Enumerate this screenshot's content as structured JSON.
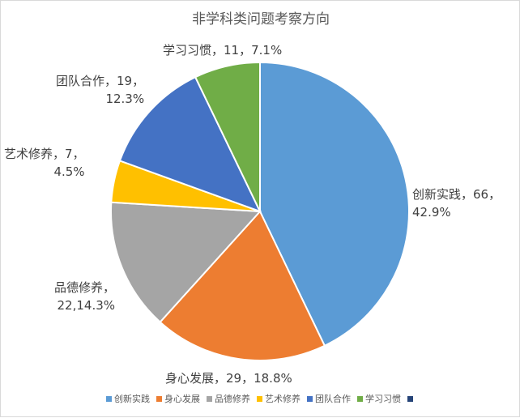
{
  "chart_data": {
    "type": "pie",
    "title": "非学科类问题考察方向",
    "categories": [
      "创新实践",
      "身心发展",
      "品德修养",
      "艺术修养",
      "团队合作",
      "学习习惯"
    ],
    "values": [
      66,
      29,
      22,
      7,
      19,
      11
    ],
    "percents": [
      "42.9%",
      "18.8%",
      "14.3%",
      "4.5%",
      "12.3%",
      "7.1%"
    ],
    "colors": [
      "#5b9bd5",
      "#ed7d31",
      "#a5a5a5",
      "#ffc000",
      "#4472c4",
      "#70ad47"
    ],
    "data_labels": [
      [
        "创新实践，66，",
        "42.9%"
      ],
      [
        "身心发展，29，18.8%"
      ],
      [
        "品德修养，",
        "22,14.3%"
      ],
      [
        "艺术修养，7，",
        "4.5%"
      ],
      [
        "团队合作，19，",
        "12.3%"
      ],
      [
        "学习习惯，11，7.1%"
      ]
    ],
    "legend": {
      "position": "bottom",
      "entries": [
        "创新实践",
        "身心发展",
        "品德修养",
        "艺术修养",
        "团队合作",
        "学习习惯",
        ""
      ],
      "colors": [
        "#5b9bd5",
        "#ed7d31",
        "#a5a5a5",
        "#ffc000",
        "#4472c4",
        "#70ad47",
        "#264478"
      ]
    }
  }
}
